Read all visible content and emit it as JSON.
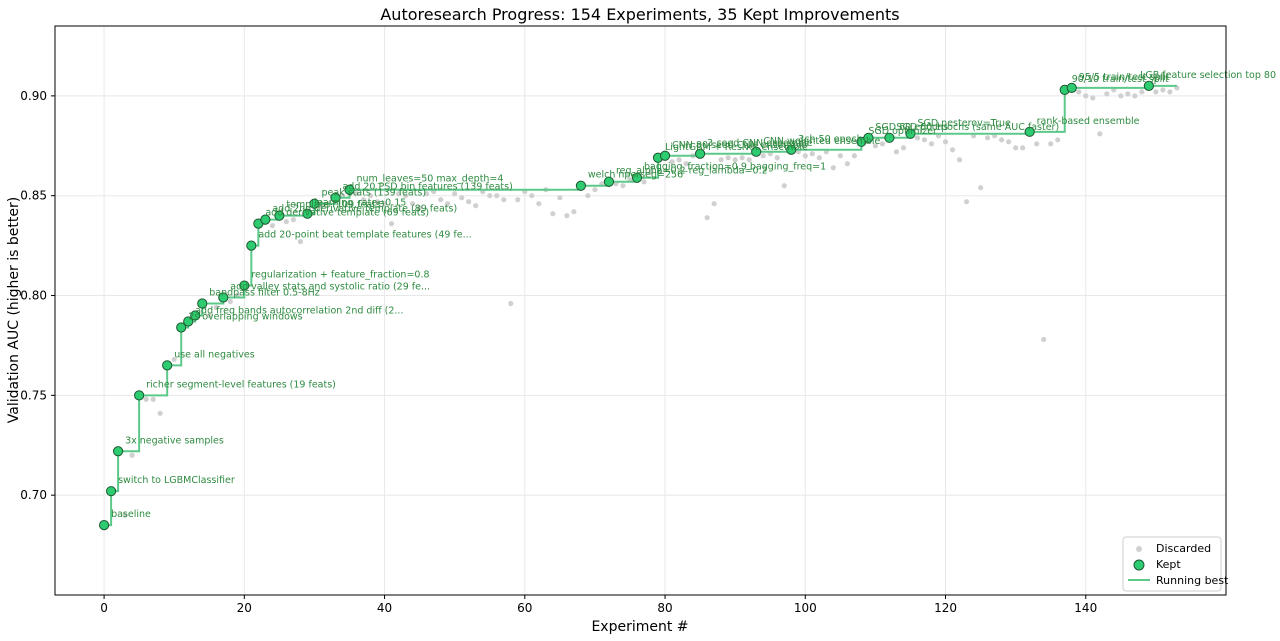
{
  "chart_data": {
    "type": "scatter",
    "title": "Autoresearch Progress: 154 Experiments, 35 Kept Improvements",
    "xlabel": "Experiment #",
    "ylabel": "Validation AUC (higher is better)",
    "xlim": [
      -7,
      160
    ],
    "ylim": [
      0.65,
      0.935
    ],
    "xticks": [
      0,
      20,
      40,
      60,
      80,
      100,
      120,
      140
    ],
    "yticks": [
      0.7,
      0.75,
      0.8,
      0.85,
      0.9
    ],
    "grid": true,
    "legend_position": "bottom-right",
    "legend": [
      "Discarded",
      "Kept",
      "Running best"
    ],
    "colors": {
      "kept": "#2ecc71",
      "kept_edge": "#1e5631",
      "running_best": "#5cc98a",
      "discarded": "#d0d0d0",
      "annotation": "#2e8b40"
    },
    "kept": [
      {
        "x": 0,
        "y": 0.685,
        "label": "baseline"
      },
      {
        "x": 1,
        "y": 0.702,
        "label": "switch to LGBMClassifier"
      },
      {
        "x": 2,
        "y": 0.722,
        "label": "3x negative samples"
      },
      {
        "x": 5,
        "y": 0.75,
        "label": "richer segment-level features (19 feats)"
      },
      {
        "x": 9,
        "y": 0.765,
        "label": "use all negatives"
      },
      {
        "x": 11,
        "y": 0.784,
        "label": "2s overlapping windows"
      },
      {
        "x": 12,
        "y": 0.787,
        "label": "add freq bands autocorrelation 2nd diff (2..."
      },
      {
        "x": 13,
        "y": 0.79,
        "label": ""
      },
      {
        "x": 14,
        "y": 0.796,
        "label": "bandpass filter 0.5-8Hz"
      },
      {
        "x": 17,
        "y": 0.799,
        "label": "add valley stats and systolic ratio (29 fe..."
      },
      {
        "x": 20,
        "y": 0.805,
        "label": "regularization + feature_fraction=0.8"
      },
      {
        "x": 21,
        "y": 0.825,
        "label": "add 20-point beat template features (49 fe..."
      },
      {
        "x": 22,
        "y": 0.836,
        "label": "add derivative template (69 feats)"
      },
      {
        "x": 23,
        "y": 0.838,
        "label": "add 2nd derivative template (89 feats)"
      },
      {
        "x": 25,
        "y": 0.84,
        "label": "template (109 feats)"
      },
      {
        "x": 29,
        "y": 0.841,
        "label": "learning_rate=0.15"
      },
      {
        "x": 30,
        "y": 0.846,
        "label": "peak stats (139 feats)"
      },
      {
        "x": 33,
        "y": 0.849,
        "label": "add 20 PSD bin features (139 feats)"
      },
      {
        "x": 35,
        "y": 0.853,
        "label": "num_leaves=50 max_depth=4"
      },
      {
        "x": 68,
        "y": 0.855,
        "label": "welch nperseg=256"
      },
      {
        "x": 72,
        "y": 0.857,
        "label": "reg_alpha=0.2 reg_lambda=0.2"
      },
      {
        "x": 76,
        "y": 0.859,
        "label": "bagging_fraction=0.9 bagging_freq=1"
      },
      {
        "x": 79,
        "y": 0.869,
        "label": "LightGBM + ResNet ensemble"
      },
      {
        "x": 80,
        "y": 0.87,
        "label": "CNN 80 seed CNN ensemble"
      },
      {
        "x": 85,
        "y": 0.871,
        "label": "3-seed CNN ensemble"
      },
      {
        "x": 93,
        "y": 0.872,
        "label": "CNN weighted ensemble"
      },
      {
        "x": 98,
        "y": 0.873,
        "label": "3ch 50 epoch"
      },
      {
        "x": 108,
        "y": 0.877,
        "label": "SGD optimizer"
      },
      {
        "x": 109,
        "y": 0.879,
        "label": "SGD 60 epochs"
      },
      {
        "x": 112,
        "y": 0.879,
        "label": "SGD 60 epochs (same AUC faster)"
      },
      {
        "x": 115,
        "y": 0.881,
        "label": "SGD nesterov=True"
      },
      {
        "x": 132,
        "y": 0.882,
        "label": "rank-based ensemble"
      },
      {
        "x": 137,
        "y": 0.903,
        "label": "90/10 train/test split"
      },
      {
        "x": 138,
        "y": 0.904,
        "label": "95/5 train/test split"
      },
      {
        "x": 149,
        "y": 0.905,
        "label": "LGB feature selection top 80"
      }
    ],
    "discarded": [
      [
        3,
        0.69
      ],
      [
        4,
        0.72
      ],
      [
        6,
        0.748
      ],
      [
        7,
        0.748
      ],
      [
        8,
        0.741
      ],
      [
        10,
        0.768
      ],
      [
        15,
        0.79
      ],
      [
        16,
        0.794
      ],
      [
        18,
        0.797
      ],
      [
        19,
        0.8
      ],
      [
        24,
        0.835
      ],
      [
        26,
        0.837
      ],
      [
        27,
        0.838
      ],
      [
        28,
        0.827
      ],
      [
        31,
        0.845
      ],
      [
        32,
        0.846
      ],
      [
        34,
        0.85
      ],
      [
        36,
        0.851
      ],
      [
        37,
        0.848
      ],
      [
        38,
        0.85
      ],
      [
        39,
        0.847
      ],
      [
        40,
        0.846
      ],
      [
        41,
        0.836
      ],
      [
        42,
        0.851
      ],
      [
        43,
        0.85
      ],
      [
        44,
        0.846
      ],
      [
        45,
        0.844
      ],
      [
        46,
        0.851
      ],
      [
        47,
        0.852
      ],
      [
        48,
        0.848
      ],
      [
        49,
        0.846
      ],
      [
        50,
        0.851
      ],
      [
        51,
        0.849
      ],
      [
        52,
        0.847
      ],
      [
        53,
        0.845
      ],
      [
        54,
        0.852
      ],
      [
        55,
        0.85
      ],
      [
        56,
        0.85
      ],
      [
        57,
        0.848
      ],
      [
        58,
        0.796
      ],
      [
        59,
        0.848
      ],
      [
        60,
        0.852
      ],
      [
        61,
        0.85
      ],
      [
        62,
        0.846
      ],
      [
        63,
        0.853
      ],
      [
        64,
        0.841
      ],
      [
        65,
        0.849
      ],
      [
        66,
        0.84
      ],
      [
        67,
        0.842
      ],
      [
        69,
        0.85
      ],
      [
        70,
        0.853
      ],
      [
        71,
        0.856
      ],
      [
        73,
        0.856
      ],
      [
        74,
        0.855
      ],
      [
        75,
        0.858
      ],
      [
        77,
        0.857
      ],
      [
        78,
        0.862
      ],
      [
        81,
        0.867
      ],
      [
        82,
        0.868
      ],
      [
        83,
        0.866
      ],
      [
        84,
        0.87
      ],
      [
        86,
        0.839
      ],
      [
        87,
        0.846
      ],
      [
        88,
        0.868
      ],
      [
        89,
        0.869
      ],
      [
        90,
        0.868
      ],
      [
        91,
        0.869
      ],
      [
        92,
        0.868
      ],
      [
        94,
        0.87
      ],
      [
        95,
        0.871
      ],
      [
        96,
        0.869
      ],
      [
        97,
        0.855
      ],
      [
        99,
        0.872
      ],
      [
        100,
        0.87
      ],
      [
        101,
        0.871
      ],
      [
        102,
        0.869
      ],
      [
        103,
        0.872
      ],
      [
        104,
        0.864
      ],
      [
        105,
        0.87
      ],
      [
        106,
        0.866
      ],
      [
        107,
        0.87
      ],
      [
        110,
        0.875
      ],
      [
        111,
        0.876
      ],
      [
        113,
        0.872
      ],
      [
        114,
        0.874
      ],
      [
        116,
        0.879
      ],
      [
        117,
        0.878
      ],
      [
        118,
        0.876
      ],
      [
        119,
        0.88
      ],
      [
        120,
        0.877
      ],
      [
        121,
        0.873
      ],
      [
        122,
        0.868
      ],
      [
        123,
        0.847
      ],
      [
        124,
        0.88
      ],
      [
        125,
        0.854
      ],
      [
        126,
        0.879
      ],
      [
        127,
        0.88
      ],
      [
        128,
        0.878
      ],
      [
        129,
        0.877
      ],
      [
        130,
        0.874
      ],
      [
        131,
        0.874
      ],
      [
        133,
        0.876
      ],
      [
        134,
        0.778
      ],
      [
        135,
        0.876
      ],
      [
        136,
        0.878
      ],
      [
        139,
        0.902
      ],
      [
        140,
        0.9
      ],
      [
        141,
        0.899
      ],
      [
        142,
        0.881
      ],
      [
        143,
        0.901
      ],
      [
        144,
        0.903
      ],
      [
        145,
        0.9
      ],
      [
        146,
        0.901
      ],
      [
        147,
        0.9
      ],
      [
        148,
        0.902
      ],
      [
        150,
        0.902
      ],
      [
        151,
        0.903
      ],
      [
        152,
        0.902
      ],
      [
        153,
        0.904
      ]
    ]
  }
}
